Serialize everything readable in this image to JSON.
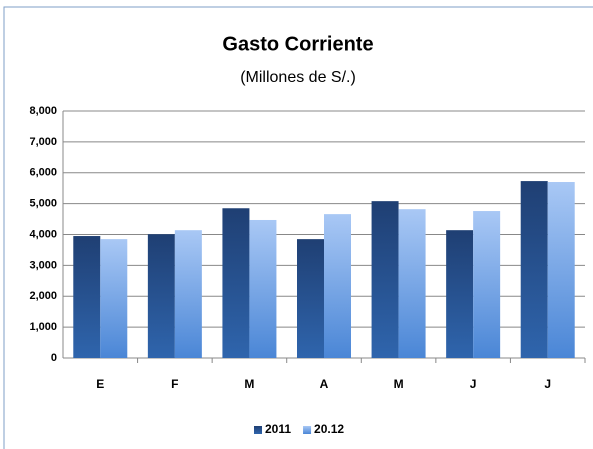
{
  "chart_data": {
    "type": "bar",
    "title": "Gasto Corriente",
    "subtitle": "(Millones de S/.)",
    "categories": [
      "E",
      "F",
      "M",
      "A",
      "M",
      "J",
      "J"
    ],
    "series": [
      {
        "name": "2011",
        "color": "#1f3f73",
        "values": [
          3950,
          4010,
          4850,
          3850,
          5080,
          4140,
          5730
        ]
      },
      {
        "name": "20.12",
        "color": "#a9c8f5",
        "values": [
          3850,
          4140,
          4470,
          4660,
          4820,
          4760,
          5700
        ]
      }
    ],
    "ylim": [
      0,
      8000
    ],
    "yticks": [
      0,
      {
        "value": 1000,
        "label": "1,000"
      },
      {
        "value": 2000,
        "label": "2,000"
      },
      {
        "value": 3000,
        "label": "3,000"
      },
      {
        "value": 4000,
        "label": "4,000"
      },
      {
        "value": 5000,
        "label": "5,000"
      },
      {
        "value": 6000,
        "label": "6,000"
      },
      {
        "value": 7000,
        "label": "7,000"
      },
      {
        "value": 8000,
        "label": "8,000"
      }
    ],
    "grid": true,
    "legend": "bottom"
  }
}
